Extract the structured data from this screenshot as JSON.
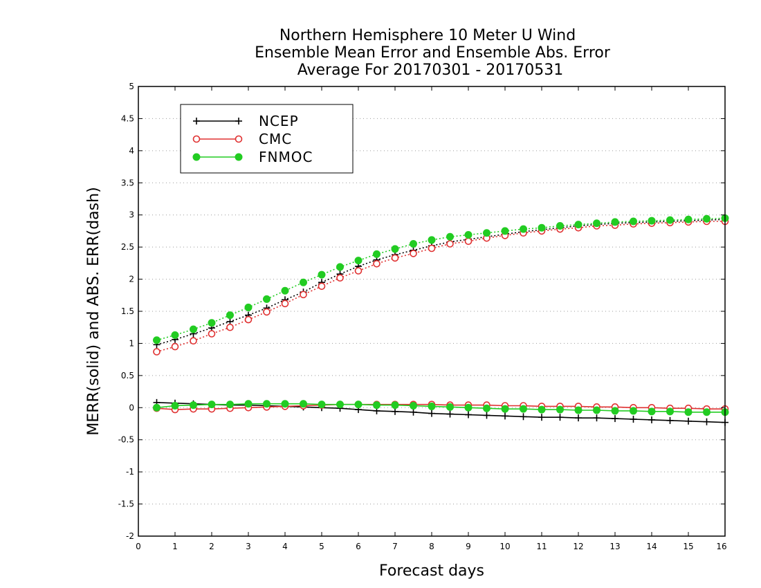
{
  "chart_data": {
    "type": "line",
    "title": [
      "Northern Hemisphere 10 Meter U Wind",
      "Ensemble Mean Error and Ensemble Abs. Error",
      "Average For 20170301 - 20170531"
    ],
    "xlabel": "Forecast days",
    "ylabel": "MERR(solid) and ABS. ERR(dash)",
    "xlim": [
      0,
      16
    ],
    "ylim": [
      -2,
      5
    ],
    "xticks": [
      0,
      1,
      2,
      3,
      4,
      5,
      6,
      7,
      8,
      9,
      10,
      11,
      12,
      13,
      14,
      15,
      16
    ],
    "yticks": [
      -2,
      -1.5,
      -1,
      -0.5,
      0,
      0.5,
      1,
      1.5,
      2,
      2.5,
      3,
      3.5,
      4,
      4.5,
      5
    ],
    "ytick_labels": [
      "-2",
      "-1.5",
      "-1",
      "-0.5",
      "0",
      "0.5",
      "1",
      "1.5",
      "2",
      "2.5",
      "3",
      "3.5",
      "4",
      "4.5",
      "5"
    ],
    "grid": "horizontal dotted",
    "legend_position": "top-left",
    "x": [
      0.5,
      1,
      1.5,
      2,
      2.5,
      3,
      3.5,
      4,
      4.5,
      5,
      5.5,
      6,
      6.5,
      7,
      7.5,
      8,
      8.5,
      9,
      9.5,
      10,
      10.5,
      11,
      11.5,
      12,
      12.5,
      13,
      13.5,
      14,
      14.5,
      15,
      15.5,
      16
    ],
    "series": [
      {
        "name": "NCEP",
        "color": "#000000",
        "marker": "plus",
        "merr": [
          0.08,
          0.07,
          0.06,
          0.05,
          0.04,
          0.04,
          0.03,
          0.02,
          0.01,
          0.0,
          -0.01,
          -0.03,
          -0.05,
          -0.06,
          -0.07,
          -0.09,
          -0.1,
          -0.11,
          -0.12,
          -0.13,
          -0.14,
          -0.15,
          -0.15,
          -0.16,
          -0.16,
          -0.17,
          -0.18,
          -0.19,
          -0.2,
          -0.21,
          -0.22,
          -0.23
        ],
        "abs_err": [
          0.98,
          1.06,
          1.15,
          1.24,
          1.34,
          1.44,
          1.55,
          1.68,
          1.8,
          1.95,
          2.08,
          2.2,
          2.3,
          2.38,
          2.45,
          2.52,
          2.58,
          2.62,
          2.66,
          2.7,
          2.74,
          2.77,
          2.8,
          2.83,
          2.85,
          2.87,
          2.88,
          2.89,
          2.9,
          2.91,
          2.92,
          2.93
        ]
      },
      {
        "name": "CMC",
        "color": "#e03030",
        "marker": "open-circle",
        "merr": [
          -0.01,
          -0.03,
          -0.02,
          -0.02,
          -0.01,
          0.0,
          0.01,
          0.02,
          0.03,
          0.04,
          0.05,
          0.05,
          0.05,
          0.05,
          0.05,
          0.05,
          0.04,
          0.04,
          0.04,
          0.03,
          0.03,
          0.02,
          0.02,
          0.02,
          0.01,
          0.01,
          0.0,
          0.0,
          -0.01,
          -0.01,
          -0.02,
          -0.02
        ],
        "abs_err": [
          0.87,
          0.95,
          1.04,
          1.15,
          1.25,
          1.37,
          1.49,
          1.62,
          1.76,
          1.89,
          2.02,
          2.13,
          2.24,
          2.33,
          2.4,
          2.48,
          2.55,
          2.59,
          2.64,
          2.68,
          2.72,
          2.75,
          2.78,
          2.8,
          2.83,
          2.84,
          2.86,
          2.87,
          2.88,
          2.89,
          2.9,
          2.9
        ]
      },
      {
        "name": "FNMOC",
        "color": "#22cc22",
        "marker": "filled-circle",
        "merr": [
          0.0,
          0.03,
          0.04,
          0.05,
          0.05,
          0.06,
          0.06,
          0.06,
          0.06,
          0.05,
          0.05,
          0.05,
          0.04,
          0.04,
          0.03,
          0.02,
          0.01,
          0.0,
          -0.01,
          -0.02,
          -0.02,
          -0.03,
          -0.03,
          -0.04,
          -0.04,
          -0.05,
          -0.05,
          -0.06,
          -0.06,
          -0.07,
          -0.07,
          -0.07
        ],
        "abs_err": [
          1.05,
          1.13,
          1.22,
          1.32,
          1.44,
          1.56,
          1.69,
          1.82,
          1.95,
          2.07,
          2.19,
          2.29,
          2.39,
          2.47,
          2.55,
          2.61,
          2.66,
          2.69,
          2.72,
          2.75,
          2.78,
          2.8,
          2.83,
          2.85,
          2.87,
          2.89,
          2.9,
          2.91,
          2.92,
          2.93,
          2.94,
          2.95
        ]
      }
    ]
  }
}
